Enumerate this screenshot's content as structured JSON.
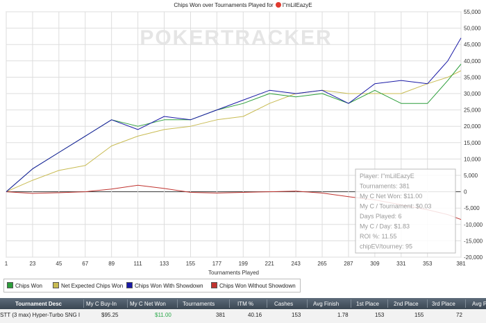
{
  "title": {
    "prefix": "Chips Won over Tournaments Played for",
    "player": "I\"mLilEazyE"
  },
  "watermark": "POKERTRACKER",
  "colors": {
    "chips_won": "#2c9e3a",
    "net_expected": "#c8bb52",
    "with_showdown": "#1a1aa6",
    "without_showdown": "#c0332f",
    "grid": "#dddddd"
  },
  "legend": [
    {
      "label": "Chips Won",
      "color": "#2c9e3a"
    },
    {
      "label": "Net Expected Chips Won",
      "color": "#c8bb52"
    },
    {
      "label": "Chips Won With Showdown",
      "color": "#1a1aa6"
    },
    {
      "label": "Chips Won Without Showdown",
      "color": "#c0332f"
    }
  ],
  "info_box": [
    "Player: I\"mLilEazyE",
    "Tournaments: 381",
    "My C Net Won: $11.00",
    "My C / Tournament: $0.03",
    "Days Played: 6",
    "My C / Day: $1.83",
    "ROI %: 11.55",
    "chipEV/tourney: 95"
  ],
  "chart_data": {
    "type": "line",
    "title": "Chips Won over Tournaments Played for I\"mLilEazyE",
    "xlabel": "Tournaments Played",
    "ylabel": "",
    "xlim": [
      1,
      381
    ],
    "ylim": [
      -20000,
      55000
    ],
    "x_ticks": [
      1,
      23,
      45,
      67,
      89,
      111,
      133,
      155,
      177,
      199,
      221,
      243,
      265,
      287,
      309,
      331,
      353,
      381
    ],
    "y_ticks": [
      {
        "value": 55000,
        "label": "55,000"
      },
      {
        "value": 50000,
        "label": "50,000"
      },
      {
        "value": 45000,
        "label": "45,000"
      },
      {
        "value": 40000,
        "label": "40,000"
      },
      {
        "value": 35000,
        "label": "35,000"
      },
      {
        "value": 30000,
        "label": "30,000"
      },
      {
        "value": 25000,
        "label": "25,000"
      },
      {
        "value": 20000,
        "label": "20,000"
      },
      {
        "value": 15000,
        "label": "15,000"
      },
      {
        "value": 10000,
        "label": "10,000"
      },
      {
        "value": 5000,
        "label": "5,000"
      },
      {
        "value": 0,
        "label": "0"
      },
      {
        "value": -5000,
        "label": "-5,000"
      },
      {
        "value": -10000,
        "label": "-10,000"
      },
      {
        "value": -15000,
        "label": "-15,000"
      },
      {
        "value": -20000,
        "label": "-20,000"
      }
    ],
    "grid": true,
    "legend_position": "bottom",
    "x": [
      1,
      23,
      45,
      67,
      89,
      111,
      133,
      155,
      177,
      199,
      221,
      243,
      265,
      287,
      309,
      331,
      353,
      370,
      381
    ],
    "series": [
      {
        "name": "Chips Won",
        "values": [
          0,
          7000,
          12000,
          17000,
          22000,
          20000,
          22000,
          22000,
          25000,
          27000,
          30000,
          29000,
          30000,
          27000,
          31000,
          27000,
          27000,
          34000,
          39000
        ]
      },
      {
        "name": "Net Expected Chips Won",
        "values": [
          0,
          3500,
          6500,
          8000,
          14000,
          17000,
          19000,
          20000,
          22000,
          23000,
          27000,
          30000,
          31000,
          30000,
          30000,
          30000,
          33000,
          35000,
          37000
        ]
      },
      {
        "name": "Chips Won With Showdown",
        "values": [
          0,
          7000,
          12000,
          17000,
          22000,
          19000,
          23000,
          22000,
          25000,
          28000,
          31000,
          30000,
          31000,
          27000,
          33000,
          34000,
          33000,
          40000,
          47000
        ]
      },
      {
        "name": "Chips Won Without Showdown",
        "values": [
          0,
          -500,
          -300,
          0,
          800,
          2000,
          1000,
          -200,
          -400,
          -200,
          0,
          200,
          -400,
          -1500,
          -2500,
          -4000,
          -5500,
          -7000,
          -8500
        ]
      }
    ]
  },
  "table": {
    "headers": [
      "Tournament Desc",
      "My C Buy-In",
      "My C Net Won",
      "Tournaments",
      "ITM %",
      "Cashes",
      "Avg Finish",
      "1st Place",
      "2nd Place",
      "3rd Place",
      "Avg P"
    ],
    "row": [
      "STT (3 max) Hyper-Turbo SNG I",
      "$95.25",
      "$11.00",
      "381",
      "40.16",
      "153",
      "1.78",
      "153",
      "155",
      "72",
      ""
    ]
  }
}
